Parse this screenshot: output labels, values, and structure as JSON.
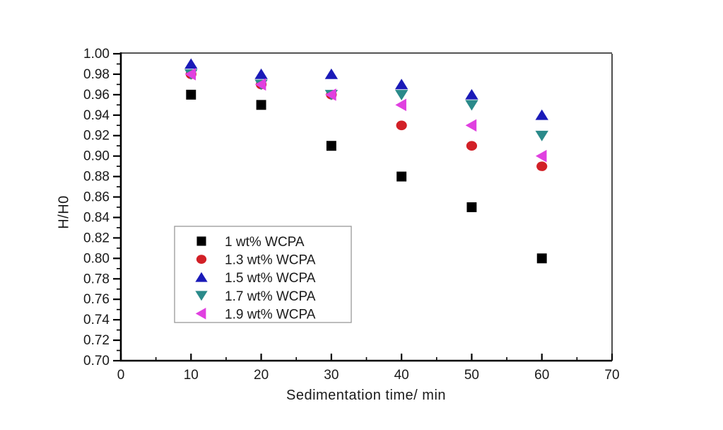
{
  "figure": {
    "background": "#ffffff",
    "text_color": "#1a1a1a",
    "axis_color": "#000000",
    "legend_border_color": "#999999"
  },
  "chart_data": {
    "type": "scatter",
    "title": "",
    "xlabel": "Sedimentation time/ min",
    "ylabel": "H/H0",
    "grid": false,
    "legend_position": "inside lower-left",
    "xlim": [
      0,
      70
    ],
    "ylim": [
      0.7,
      1.0
    ],
    "x_tick_labels": [
      "0",
      "10",
      "20",
      "30",
      "40",
      "50",
      "60",
      "70"
    ],
    "x_minor_step": 5,
    "y_tick_labels": [
      "0.70",
      "0.72",
      "0.74",
      "0.76",
      "0.78",
      "0.80",
      "0.82",
      "0.84",
      "0.86",
      "0.88",
      "0.90",
      "0.92",
      "0.94",
      "0.96",
      "0.98",
      "1.00"
    ],
    "y_minor_step": 0.01,
    "x": [
      10,
      20,
      30,
      40,
      50,
      60
    ],
    "series": [
      {
        "name": "1 wt% WCPA",
        "marker": "square",
        "color": "#000000",
        "values": [
          0.96,
          0.95,
          0.91,
          0.88,
          0.85,
          0.8
        ]
      },
      {
        "name": "1.3 wt% WCPA",
        "marker": "circle",
        "color": "#d22027",
        "values": [
          0.98,
          0.97,
          0.96,
          0.93,
          0.91,
          0.89
        ]
      },
      {
        "name": "1.5 wt% WCPA",
        "marker": "triangle-up",
        "color": "#1a1ab8",
        "values": [
          0.99,
          0.98,
          0.98,
          0.97,
          0.96,
          0.94
        ]
      },
      {
        "name": "1.7 wt% WCPA",
        "marker": "triangle-down",
        "color": "#2a8a8a",
        "values": [
          0.98,
          0.97,
          0.96,
          0.96,
          0.95,
          0.92
        ]
      },
      {
        "name": "1.9 wt% WCPA",
        "marker": "triangle-left",
        "color": "#e040e0",
        "values": [
          0.98,
          0.97,
          0.96,
          0.95,
          0.93,
          0.9
        ]
      }
    ]
  }
}
